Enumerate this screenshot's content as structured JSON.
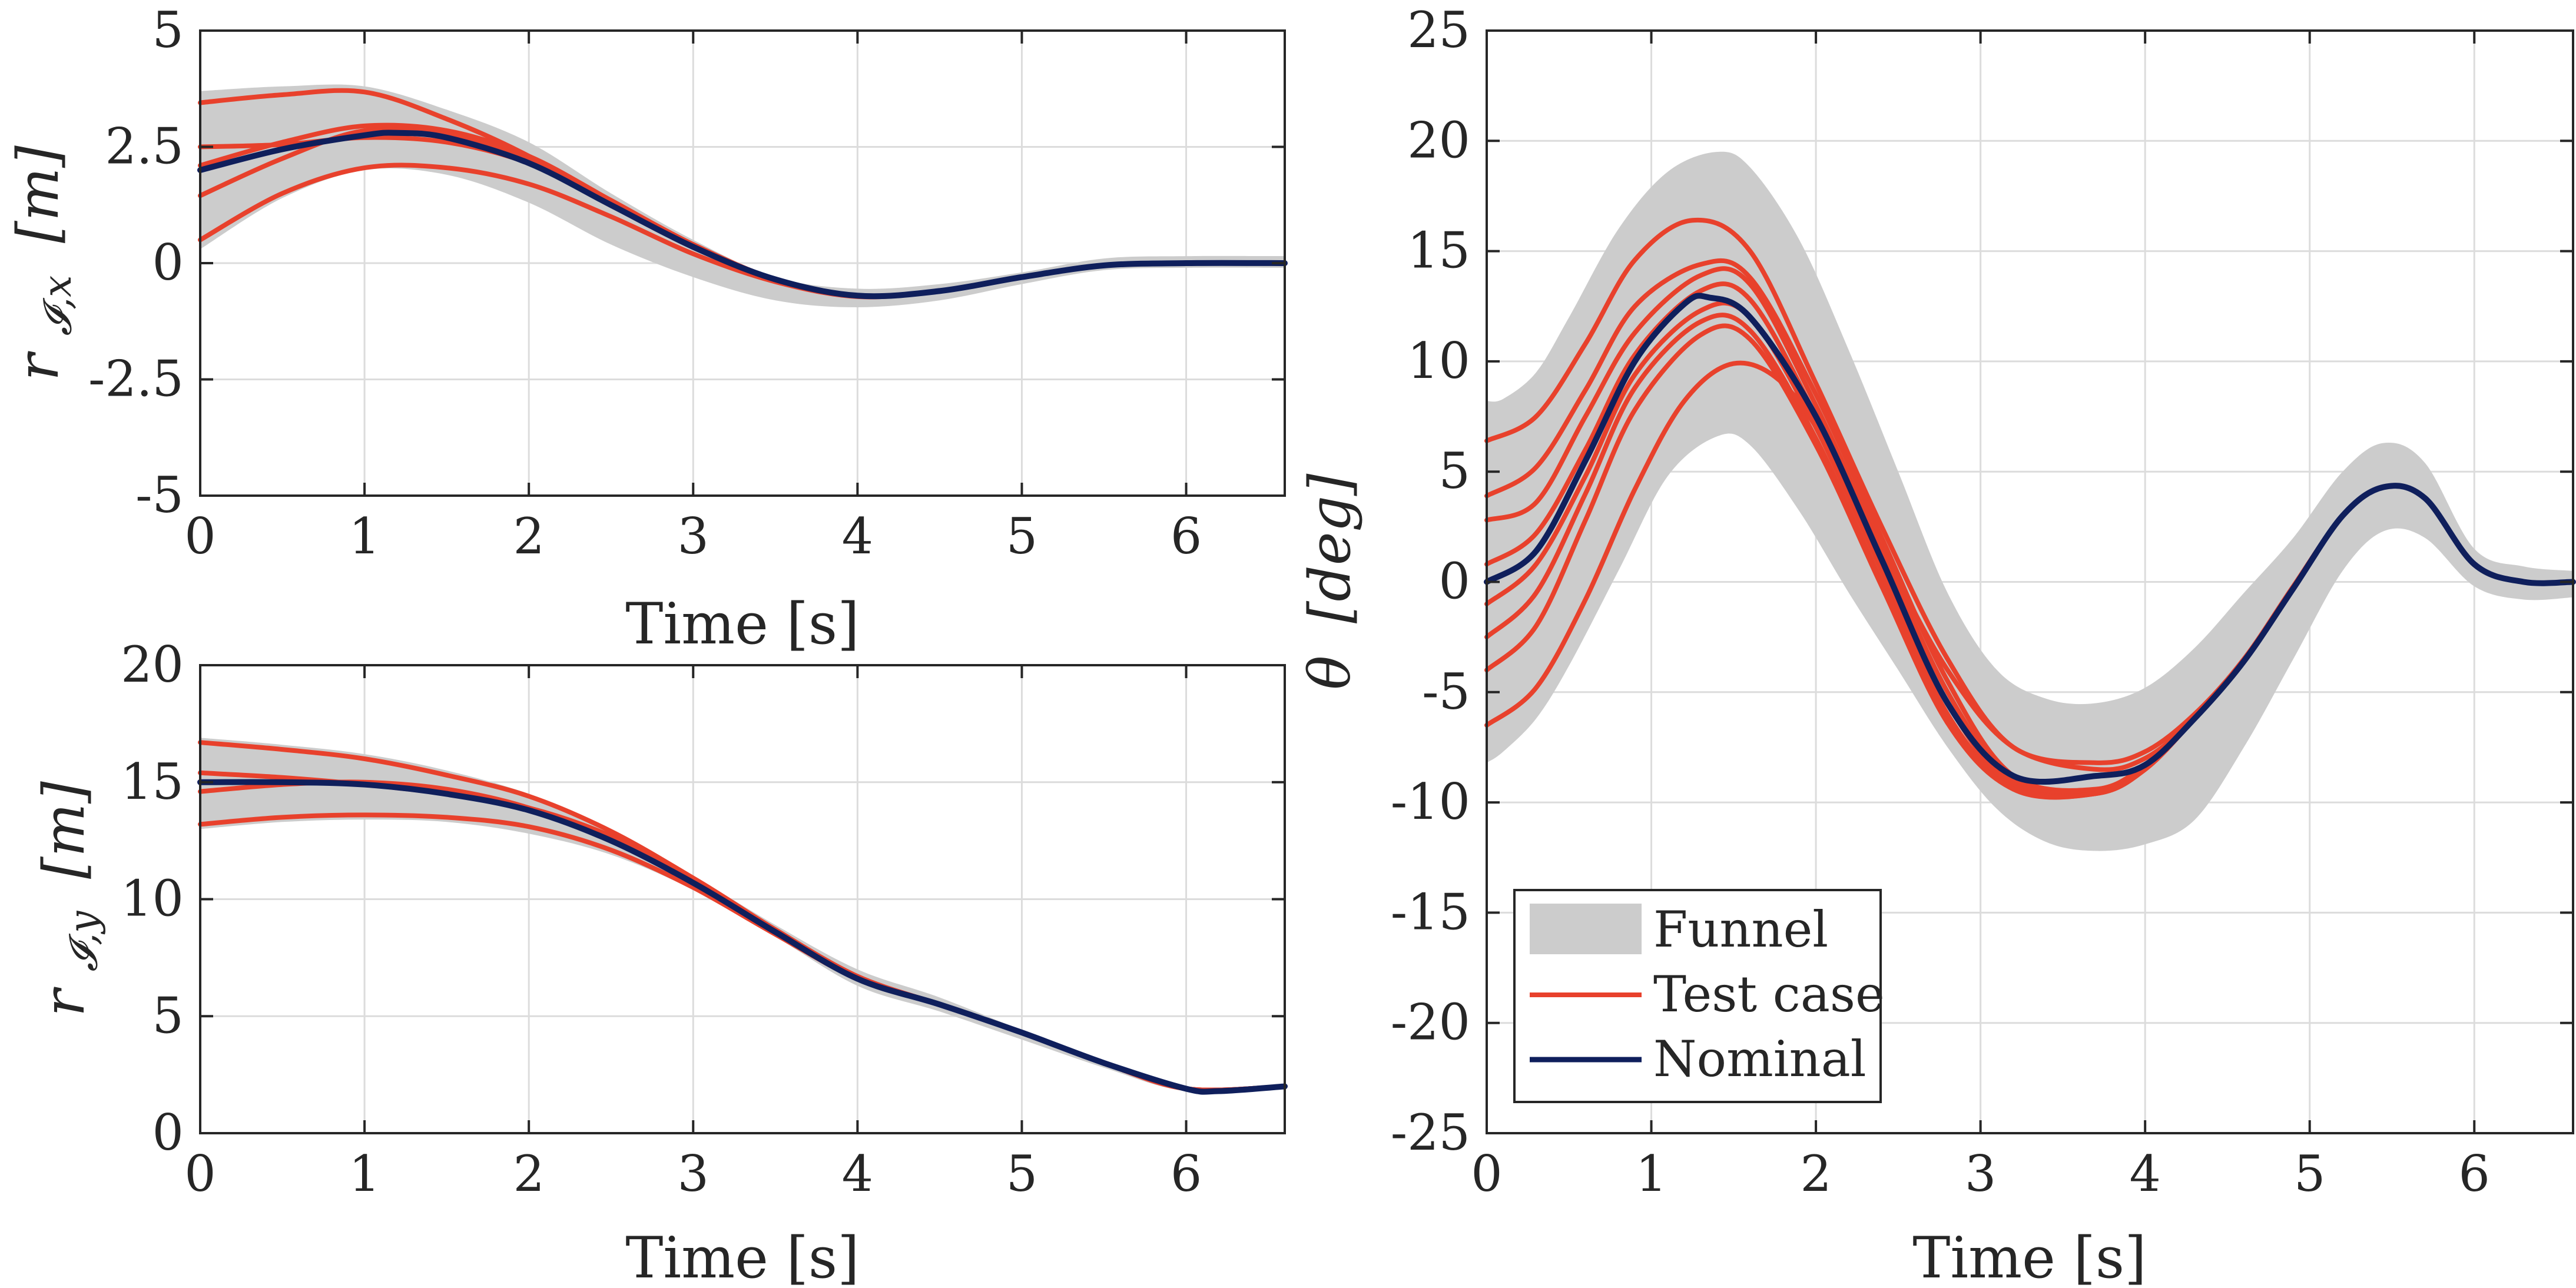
{
  "colors": {
    "funnel": "#cccccc",
    "test_case": "#e8412c",
    "nominal": "#0f1f5c",
    "axis": "#262626",
    "grid": "#dcdcdc"
  },
  "chart_data": [
    {
      "id": "rx",
      "type": "line",
      "xlabel": "Time [s]",
      "ylabel_main": "r",
      "ylabel_sub": "𝓘,x",
      "ylabel_unit": "[m]",
      "xlim": [
        0,
        6.6
      ],
      "ylim": [
        -5,
        5
      ],
      "xticks": [
        0,
        1,
        2,
        3,
        4,
        5,
        6
      ],
      "xtick_labels": [
        "0",
        "1",
        "2",
        "3",
        "4",
        "5",
        "6"
      ],
      "yticks": [
        -5,
        -2.5,
        0,
        2.5,
        5
      ],
      "ytick_labels": [
        "-5",
        "-2.5",
        "0",
        "2.5",
        "5"
      ],
      "grid": true,
      "funnel": {
        "name": "Funnel",
        "x": [
          0,
          0.5,
          1,
          1.5,
          2,
          2.5,
          3,
          3.5,
          4,
          4.5,
          5,
          5.5,
          6,
          6.6
        ],
        "upper": [
          3.7,
          3.8,
          3.8,
          3.3,
          2.6,
          1.5,
          0.5,
          -0.3,
          -0.55,
          -0.45,
          -0.2,
          0.1,
          0.15,
          0.15
        ],
        "lower": [
          0.3,
          1.4,
          2.0,
          1.9,
          1.3,
          0.4,
          -0.3,
          -0.8,
          -0.95,
          -0.8,
          -0.45,
          -0.15,
          -0.1,
          -0.1
        ]
      },
      "test_cases": [
        {
          "x": [
            0,
            0.5,
            1,
            1.5,
            2,
            2.5,
            3,
            3.5,
            4,
            4.5,
            5,
            5.5,
            6,
            6.6
          ],
          "y": [
            3.45,
            3.62,
            3.68,
            3.1,
            2.3,
            1.25,
            0.35,
            -0.35,
            -0.7,
            -0.6,
            -0.3,
            -0.05,
            0,
            0
          ]
        },
        {
          "x": [
            0,
            0.5,
            1,
            1.5,
            2,
            2.5,
            3,
            3.5,
            4,
            4.5,
            5,
            5.5,
            6,
            6.6
          ],
          "y": [
            2.5,
            2.55,
            2.7,
            2.6,
            2.15,
            1.3,
            0.4,
            -0.35,
            -0.7,
            -0.6,
            -0.3,
            -0.05,
            0,
            0
          ]
        },
        {
          "x": [
            0,
            0.5,
            1,
            1.5,
            2,
            2.5,
            3,
            3.5,
            4,
            4.5,
            5,
            5.5,
            6,
            6.6
          ],
          "y": [
            1.45,
            2.25,
            2.85,
            2.75,
            2.2,
            1.3,
            0.4,
            -0.35,
            -0.7,
            -0.6,
            -0.3,
            -0.05,
            0,
            0
          ]
        },
        {
          "x": [
            0,
            0.5,
            1,
            1.5,
            2,
            2.5,
            3,
            3.5,
            4,
            4.5,
            5,
            5.5,
            6,
            6.6
          ],
          "y": [
            0.5,
            1.5,
            2.05,
            2.05,
            1.7,
            1.0,
            0.2,
            -0.4,
            -0.72,
            -0.6,
            -0.3,
            -0.05,
            0,
            0
          ]
        },
        {
          "x": [
            0,
            0.5,
            1,
            1.5,
            2,
            2.5,
            3,
            3.5,
            4,
            4.5,
            5,
            5.5,
            6,
            6.6
          ],
          "y": [
            2.1,
            2.6,
            2.95,
            2.85,
            2.3,
            1.35,
            0.4,
            -0.35,
            -0.7,
            -0.6,
            -0.3,
            -0.05,
            0,
            0
          ]
        }
      ],
      "nominal": {
        "name": "Nominal",
        "x": [
          0,
          0.5,
          1,
          1.2,
          1.5,
          2,
          2.5,
          3,
          3.5,
          4,
          4.5,
          5,
          5.5,
          6,
          6.6
        ],
        "y": [
          2.0,
          2.45,
          2.75,
          2.8,
          2.7,
          2.15,
          1.25,
          0.35,
          -0.35,
          -0.7,
          -0.6,
          -0.3,
          -0.05,
          0,
          0
        ]
      }
    },
    {
      "id": "ry",
      "type": "line",
      "xlabel": "Time [s]",
      "ylabel_main": "r",
      "ylabel_sub": "𝓘,y",
      "ylabel_unit": "[m]",
      "xlim": [
        0,
        6.6
      ],
      "ylim": [
        0,
        20
      ],
      "xticks": [
        0,
        1,
        2,
        3,
        4,
        5,
        6
      ],
      "xtick_labels": [
        "0",
        "1",
        "2",
        "3",
        "4",
        "5",
        "6"
      ],
      "yticks": [
        0,
        5,
        10,
        15,
        20
      ],
      "ytick_labels": [
        "0",
        "5",
        "10",
        "15",
        "20"
      ],
      "grid": true,
      "funnel": {
        "name": "Funnel",
        "x": [
          0,
          0.5,
          1,
          1.5,
          2,
          2.5,
          3,
          3.5,
          4,
          4.5,
          5,
          5.5,
          6,
          6.6
        ],
        "upper": [
          16.9,
          16.6,
          16.2,
          15.5,
          14.5,
          13.0,
          11.0,
          8.9,
          7.0,
          5.8,
          4.4,
          3.1,
          2.0,
          2.1
        ],
        "lower": [
          13.0,
          13.3,
          13.4,
          13.3,
          12.8,
          11.9,
          10.4,
          8.4,
          6.3,
          5.2,
          4.0,
          2.8,
          1.8,
          1.9
        ]
      },
      "test_cases": [
        {
          "x": [
            0,
            0.5,
            1,
            1.5,
            2,
            2.5,
            3,
            3.5,
            4,
            4.5,
            5,
            5.5,
            6,
            6.6
          ],
          "y": [
            16.7,
            16.4,
            16.0,
            15.3,
            14.4,
            12.9,
            10.9,
            8.7,
            6.7,
            5.5,
            4.3,
            3.0,
            1.9,
            2.0
          ]
        },
        {
          "x": [
            0,
            0.5,
            1,
            1.5,
            2,
            2.5,
            3,
            3.5,
            4,
            4.5,
            5,
            5.5,
            6,
            6.6
          ],
          "y": [
            15.4,
            15.2,
            14.9,
            14.5,
            13.9,
            12.7,
            10.9,
            8.7,
            6.7,
            5.5,
            4.3,
            3.0,
            1.9,
            2.0
          ]
        },
        {
          "x": [
            0,
            0.5,
            1,
            1.5,
            2,
            2.5,
            3,
            3.5,
            4,
            4.5,
            5,
            5.5,
            6,
            6.6
          ],
          "y": [
            14.6,
            14.9,
            15.0,
            14.7,
            13.9,
            12.5,
            10.7,
            8.6,
            6.7,
            5.5,
            4.3,
            3.0,
            1.9,
            2.0
          ]
        },
        {
          "x": [
            0,
            0.5,
            1,
            1.5,
            2,
            2.5,
            3,
            3.5,
            4,
            4.5,
            5,
            5.5,
            6,
            6.6
          ],
          "y": [
            13.2,
            13.5,
            13.6,
            13.5,
            13.1,
            12.1,
            10.5,
            8.5,
            6.6,
            5.5,
            4.3,
            3.0,
            1.9,
            2.0
          ]
        }
      ],
      "nominal": {
        "name": "Nominal",
        "x": [
          0,
          0.5,
          1,
          1.5,
          2,
          2.5,
          3,
          3.5,
          4,
          4.5,
          5,
          5.5,
          6,
          6.2,
          6.6
        ],
        "y": [
          15.0,
          15.0,
          14.9,
          14.5,
          13.8,
          12.5,
          10.7,
          8.6,
          6.6,
          5.5,
          4.3,
          3.0,
          1.9,
          1.8,
          2.0
        ]
      }
    },
    {
      "id": "theta",
      "type": "line",
      "xlabel": "Time [s]",
      "ylabel_main": "θ",
      "ylabel_unit": "[deg]",
      "xlim": [
        0,
        6.6
      ],
      "ylim": [
        -25,
        25
      ],
      "xticks": [
        0,
        1,
        2,
        3,
        4,
        5,
        6
      ],
      "xtick_labels": [
        "0",
        "1",
        "2",
        "3",
        "4",
        "5",
        "6"
      ],
      "yticks": [
        -25,
        -20,
        -15,
        -10,
        -5,
        0,
        5,
        10,
        15,
        20,
        25
      ],
      "ytick_labels": [
        "-25",
        "-20",
        "-15",
        "-10",
        "-5",
        "0",
        "5",
        "10",
        "15",
        "20",
        "25"
      ],
      "grid": true,
      "legend": {
        "placement": "bottom-left",
        "entries": [
          {
            "label": "Funnel",
            "kind": "patch"
          },
          {
            "label": "Test case",
            "kind": "test_case"
          },
          {
            "label": "Nominal",
            "kind": "nominal"
          }
        ]
      },
      "funnel": {
        "name": "Funnel",
        "x": [
          0,
          0.1,
          0.3,
          0.5,
          0.8,
          1.1,
          1.4,
          1.6,
          1.9,
          2.2,
          2.5,
          2.8,
          3.1,
          3.4,
          3.7,
          4.0,
          4.3,
          4.6,
          4.9,
          5.2,
          5.45,
          5.7,
          6.0,
          6.3,
          6.6
        ],
        "upper": [
          8.2,
          8.3,
          9.5,
          12.0,
          16.0,
          18.6,
          19.5,
          18.8,
          15.5,
          10.5,
          5.0,
          -0.5,
          -4.0,
          -5.3,
          -5.5,
          -4.8,
          -3.0,
          -0.5,
          2.0,
          5.0,
          6.3,
          5.4,
          1.5,
          0.7,
          0.5
        ],
        "lower": [
          -8.2,
          -7.7,
          -6.2,
          -3.8,
          0.5,
          4.8,
          6.6,
          6.2,
          3.2,
          -0.5,
          -4.0,
          -7.5,
          -10.3,
          -11.8,
          -12.2,
          -11.9,
          -10.8,
          -7.5,
          -3.5,
          0.5,
          2.3,
          2.0,
          -0.2,
          -0.8,
          -0.7
        ]
      },
      "test_cases": [
        {
          "x": [
            0,
            0.3,
            0.6,
            0.9,
            1.25,
            1.6,
            2.0,
            2.4,
            2.8,
            3.2,
            3.7,
            4.0,
            4.3,
            4.6,
            4.9,
            5.2,
            5.45,
            5.7,
            6.0,
            6.3,
            6.6
          ],
          "y": [
            6.4,
            7.5,
            10.8,
            14.6,
            16.4,
            15.0,
            9.0,
            2.5,
            -3.5,
            -7.5,
            -8.2,
            -7.7,
            -6.0,
            -3.5,
            -0.2,
            3.0,
            4.3,
            3.8,
            0.8,
            0,
            0
          ]
        },
        {
          "x": [
            0,
            0.3,
            0.6,
            0.9,
            1.3,
            1.6,
            2.0,
            2.4,
            2.8,
            3.2,
            3.7,
            4.0,
            4.3,
            4.6,
            4.9,
            5.2,
            5.45,
            5.7,
            6.0,
            6.3,
            6.6
          ],
          "y": [
            3.9,
            5.2,
            8.7,
            12.5,
            14.4,
            13.8,
            8.5,
            2.0,
            -4.5,
            -8.8,
            -9.4,
            -8.3,
            -6.2,
            -3.6,
            -0.3,
            3.0,
            4.3,
            3.8,
            0.8,
            0,
            0
          ]
        },
        {
          "x": [
            0,
            0.3,
            0.6,
            0.9,
            1.3,
            1.6,
            2.0,
            2.4,
            2.8,
            3.2,
            3.7,
            4.0,
            4.3,
            4.6,
            4.9,
            5.2,
            5.45,
            5.7,
            6.0,
            6.3,
            6.6
          ],
          "y": [
            2.8,
            3.6,
            7.5,
            11.3,
            13.9,
            13.5,
            8.0,
            1.5,
            -5.0,
            -9.0,
            -9.5,
            -8.4,
            -6.2,
            -3.6,
            -0.3,
            3.0,
            4.3,
            3.8,
            0.8,
            0,
            0
          ]
        },
        {
          "x": [
            0,
            0.3,
            0.6,
            0.9,
            1.3,
            1.6,
            2.0,
            2.4,
            2.8,
            3.2,
            3.7,
            4.0,
            4.3,
            4.6,
            4.9,
            5.2,
            5.45,
            5.7,
            6.0,
            6.3,
            6.6
          ],
          "y": [
            0.8,
            2.2,
            6.0,
            10.3,
            13.2,
            12.8,
            7.5,
            1.0,
            -5.5,
            -9.2,
            -9.6,
            -8.5,
            -6.2,
            -3.6,
            -0.3,
            3.0,
            4.3,
            3.8,
            0.8,
            0,
            0
          ]
        },
        {
          "x": [
            0,
            0.3,
            0.6,
            0.9,
            1.3,
            1.6,
            2.0,
            2.4,
            2.8,
            3.2,
            3.7,
            4.0,
            4.3,
            4.6,
            4.9,
            5.2,
            5.45,
            5.7,
            6.0,
            6.3,
            6.6
          ],
          "y": [
            -1.0,
            0.8,
            4.8,
            9.4,
            12.3,
            12.0,
            7.0,
            0.5,
            -6.0,
            -9.3,
            -9.6,
            -8.5,
            -6.2,
            -3.6,
            -0.3,
            3.0,
            4.3,
            3.8,
            0.8,
            0,
            0
          ]
        },
        {
          "x": [
            0,
            0.3,
            0.6,
            0.9,
            1.3,
            1.6,
            2.0,
            2.4,
            2.8,
            3.2,
            3.7,
            4.0,
            4.3,
            4.6,
            4.9,
            5.2,
            5.45,
            5.7,
            6.0,
            6.3,
            6.6
          ],
          "y": [
            -2.5,
            -0.5,
            4.0,
            8.8,
            11.8,
            11.4,
            6.5,
            0.0,
            -6.2,
            -9.4,
            -9.6,
            -8.5,
            -6.2,
            -3.6,
            -0.3,
            3.0,
            4.3,
            3.8,
            0.8,
            0,
            0
          ]
        },
        {
          "x": [
            0,
            0.3,
            0.6,
            0.9,
            1.3,
            1.6,
            2.0,
            2.4,
            2.8,
            3.2,
            3.7,
            4.0,
            4.3,
            4.6,
            4.9,
            5.2,
            5.45,
            5.7,
            6.0,
            6.3,
            6.6
          ],
          "y": [
            -4.0,
            -2.0,
            2.8,
            7.8,
            11.2,
            11.0,
            6.2,
            -0.2,
            -6.4,
            -9.4,
            -9.6,
            -8.5,
            -6.2,
            -3.6,
            -0.3,
            3.0,
            4.3,
            3.8,
            0.8,
            0,
            0
          ]
        },
        {
          "x": [
            0,
            0.3,
            0.6,
            0.9,
            1.2,
            1.5,
            1.8,
            2.1,
            2.4,
            2.8,
            3.2,
            3.7,
            4.0,
            4.3,
            4.6,
            4.9,
            5.2,
            5.45,
            5.7,
            6.0,
            6.3,
            6.6
          ],
          "y": [
            -6.5,
            -4.8,
            -0.8,
            4.2,
            8.2,
            9.9,
            9.0,
            5.8,
            1.5,
            -4.0,
            -7.5,
            -8.5,
            -8.0,
            -6.2,
            -3.6,
            -0.3,
            3.0,
            4.3,
            3.8,
            0.8,
            0,
            0
          ]
        }
      ],
      "nominal": {
        "name": "Nominal",
        "x": [
          0,
          0.3,
          0.6,
          0.9,
          1.2,
          1.35,
          1.6,
          2.0,
          2.4,
          2.8,
          3.2,
          3.7,
          4.0,
          4.3,
          4.6,
          4.9,
          5.2,
          5.45,
          5.7,
          6.0,
          6.3,
          6.6
        ],
        "y": [
          0.0,
          1.4,
          5.5,
          10.0,
          12.6,
          12.9,
          12.0,
          7.5,
          1.0,
          -5.5,
          -8.8,
          -8.8,
          -8.3,
          -6.2,
          -3.6,
          -0.3,
          3.0,
          4.3,
          3.8,
          0.8,
          0,
          0
        ]
      }
    }
  ]
}
